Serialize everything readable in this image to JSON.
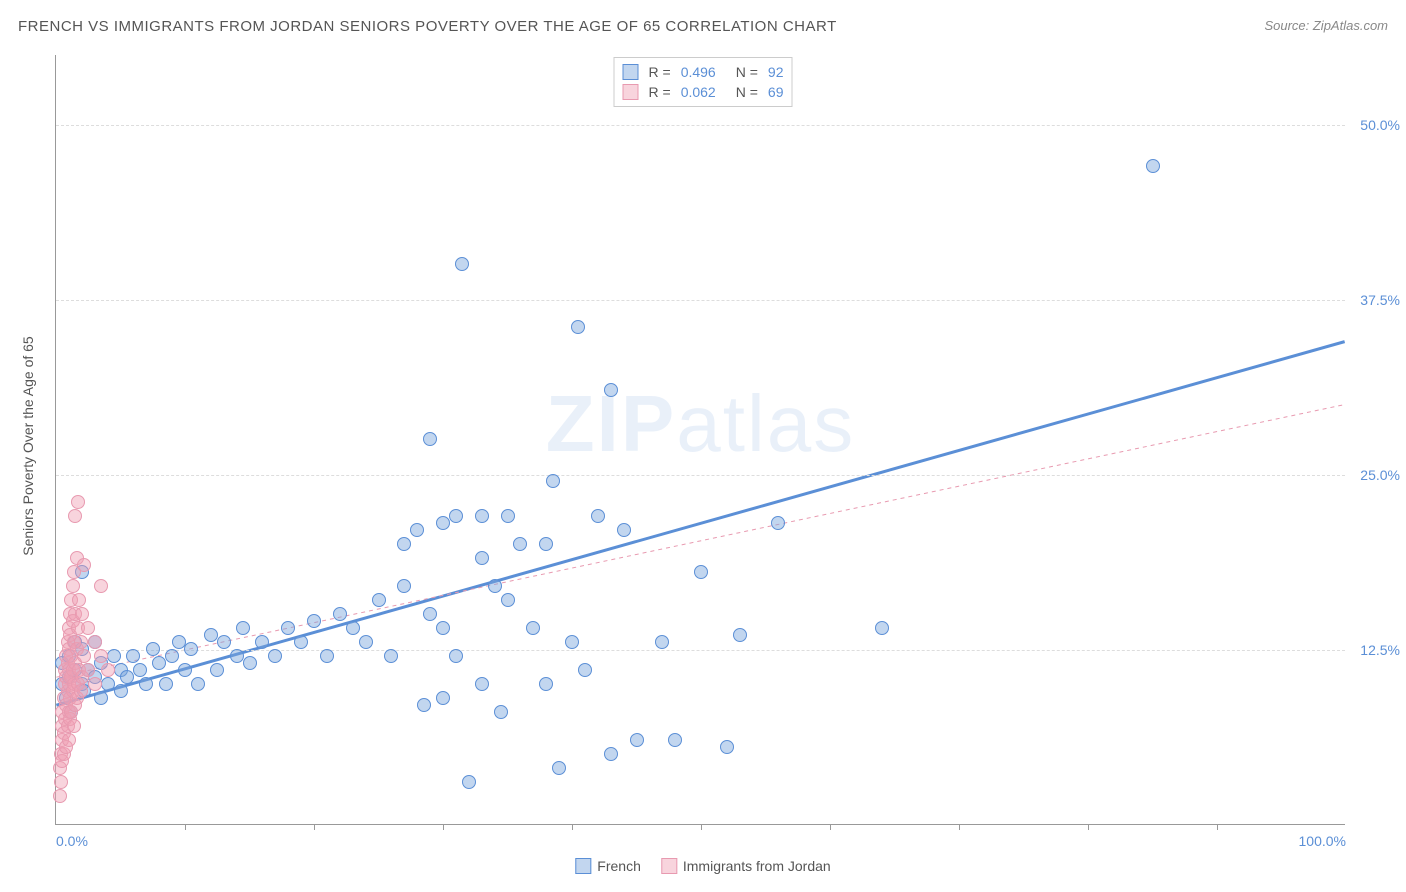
{
  "title": "FRENCH VS IMMIGRANTS FROM JORDAN SENIORS POVERTY OVER THE AGE OF 65 CORRELATION CHART",
  "source": "Source: ZipAtlas.com",
  "ylabel": "Seniors Poverty Over the Age of 65",
  "watermark_bold": "ZIP",
  "watermark_rest": "atlas",
  "chart": {
    "type": "scatter",
    "background_color": "#ffffff",
    "grid_color": "#dddddd",
    "axis_color": "#999999",
    "tick_label_color": "#5b8fd6",
    "label_color": "#555555",
    "title_fontsize": 15,
    "label_fontsize": 14,
    "tick_fontsize": 14,
    "xlim": [
      0,
      100
    ],
    "ylim": [
      0,
      55
    ],
    "yticks": [
      {
        "v": 12.5,
        "label": "12.5%"
      },
      {
        "v": 25.0,
        "label": "25.0%"
      },
      {
        "v": 37.5,
        "label": "37.5%"
      },
      {
        "v": 50.0,
        "label": "50.0%"
      }
    ],
    "xticks_major": [
      0,
      100
    ],
    "xtick_labels": {
      "0": "0.0%",
      "100": "100.0%"
    },
    "xticks_minor": [
      10,
      20,
      30,
      40,
      50,
      60,
      70,
      80,
      90
    ],
    "marker_radius": 7,
    "marker_opacity": 0.55,
    "series": [
      {
        "name": "French",
        "color": "#5b8fd6",
        "fill": "rgba(120,165,220,0.45)",
        "stroke": "#5b8fd6",
        "R": "0.496",
        "N": "92",
        "trend": {
          "x1": 0,
          "y1": 8.5,
          "x2": 100,
          "y2": 34.5,
          "width": 3,
          "dash": "none"
        },
        "points": [
          [
            0.5,
            10
          ],
          [
            0.5,
            11.5
          ],
          [
            0.8,
            9
          ],
          [
            1,
            10.5
          ],
          [
            1,
            12
          ],
          [
            1.2,
            8
          ],
          [
            1.5,
            11
          ],
          [
            1.5,
            13
          ],
          [
            2,
            10
          ],
          [
            2,
            12.5
          ],
          [
            2,
            18
          ],
          [
            2.2,
            9.5
          ],
          [
            2.5,
            11
          ],
          [
            3,
            10.5
          ],
          [
            3,
            13
          ],
          [
            3.5,
            9
          ],
          [
            3.5,
            11.5
          ],
          [
            4,
            10
          ],
          [
            4.5,
            12
          ],
          [
            5,
            9.5
          ],
          [
            5,
            11
          ],
          [
            5.5,
            10.5
          ],
          [
            6,
            12
          ],
          [
            6.5,
            11
          ],
          [
            7,
            10
          ],
          [
            7.5,
            12.5
          ],
          [
            8,
            11.5
          ],
          [
            8.5,
            10
          ],
          [
            9,
            12
          ],
          [
            9.5,
            13
          ],
          [
            10,
            11
          ],
          [
            10.5,
            12.5
          ],
          [
            11,
            10
          ],
          [
            12,
            13.5
          ],
          [
            12.5,
            11
          ],
          [
            13,
            13
          ],
          [
            14,
            12
          ],
          [
            14.5,
            14
          ],
          [
            15,
            11.5
          ],
          [
            16,
            13
          ],
          [
            17,
            12
          ],
          [
            18,
            14
          ],
          [
            19,
            13
          ],
          [
            20,
            14.5
          ],
          [
            21,
            12
          ],
          [
            22,
            15
          ],
          [
            23,
            14
          ],
          [
            24,
            13
          ],
          [
            25,
            16
          ],
          [
            26,
            12
          ],
          [
            27,
            17
          ],
          [
            27,
            20
          ],
          [
            28,
            21
          ],
          [
            28.5,
            8.5
          ],
          [
            29,
            15
          ],
          [
            29,
            27.5
          ],
          [
            30,
            9
          ],
          [
            30,
            14
          ],
          [
            30,
            21.5
          ],
          [
            31,
            12
          ],
          [
            31,
            22
          ],
          [
            31.5,
            40
          ],
          [
            32,
            3
          ],
          [
            33,
            10
          ],
          [
            33,
            19
          ],
          [
            33,
            22
          ],
          [
            34,
            17
          ],
          [
            34.5,
            8
          ],
          [
            35,
            16
          ],
          [
            35,
            22
          ],
          [
            36,
            20
          ],
          [
            37,
            14
          ],
          [
            38,
            10
          ],
          [
            38,
            20
          ],
          [
            38.5,
            24.5
          ],
          [
            39,
            4
          ],
          [
            40,
            13
          ],
          [
            40.5,
            35.5
          ],
          [
            41,
            11
          ],
          [
            42,
            22
          ],
          [
            43,
            5
          ],
          [
            43,
            31
          ],
          [
            44,
            21
          ],
          [
            45,
            6
          ],
          [
            47,
            13
          ],
          [
            48,
            6
          ],
          [
            50,
            18
          ],
          [
            52,
            5.5
          ],
          [
            53,
            13.5
          ],
          [
            56,
            21.5
          ],
          [
            64,
            14
          ],
          [
            85,
            47
          ]
        ]
      },
      {
        "name": "Immigrants from Jordan",
        "color": "#e89ab0",
        "fill": "rgba(240,160,180,0.45)",
        "stroke": "#e89ab0",
        "R": "0.062",
        "N": "69",
        "trend": {
          "x1": 0,
          "y1": 10.5,
          "x2": 100,
          "y2": 30,
          "width": 1,
          "dash": "4,4"
        },
        "points": [
          [
            0.3,
            2
          ],
          [
            0.3,
            4
          ],
          [
            0.4,
            3
          ],
          [
            0.4,
            5
          ],
          [
            0.5,
            4.5
          ],
          [
            0.5,
            6
          ],
          [
            0.5,
            7
          ],
          [
            0.5,
            8
          ],
          [
            0.6,
            5
          ],
          [
            0.6,
            6.5
          ],
          [
            0.6,
            9
          ],
          [
            0.7,
            7.5
          ],
          [
            0.7,
            10
          ],
          [
            0.7,
            11
          ],
          [
            0.8,
            5.5
          ],
          [
            0.8,
            8.5
          ],
          [
            0.8,
            10.5
          ],
          [
            0.8,
            12
          ],
          [
            0.9,
            7
          ],
          [
            0.9,
            9.5
          ],
          [
            0.9,
            11.5
          ],
          [
            0.9,
            13
          ],
          [
            1,
            6
          ],
          [
            1,
            8
          ],
          [
            1,
            10
          ],
          [
            1,
            11
          ],
          [
            1,
            12.5
          ],
          [
            1,
            14
          ],
          [
            1.1,
            7.5
          ],
          [
            1.1,
            9
          ],
          [
            1.1,
            13.5
          ],
          [
            1.1,
            15
          ],
          [
            1.2,
            8
          ],
          [
            1.2,
            10.5
          ],
          [
            1.2,
            12
          ],
          [
            1.2,
            16
          ],
          [
            1.3,
            9.5
          ],
          [
            1.3,
            11
          ],
          [
            1.3,
            14.5
          ],
          [
            1.3,
            17
          ],
          [
            1.4,
            7
          ],
          [
            1.4,
            10
          ],
          [
            1.4,
            13
          ],
          [
            1.4,
            18
          ],
          [
            1.5,
            8.5
          ],
          [
            1.5,
            11.5
          ],
          [
            1.5,
            15
          ],
          [
            1.5,
            22
          ],
          [
            1.6,
            9
          ],
          [
            1.6,
            12.5
          ],
          [
            1.6,
            19
          ],
          [
            1.7,
            10
          ],
          [
            1.7,
            14
          ],
          [
            1.7,
            23
          ],
          [
            1.8,
            11
          ],
          [
            1.8,
            16
          ],
          [
            1.9,
            9.5
          ],
          [
            1.9,
            13
          ],
          [
            2,
            10.5
          ],
          [
            2,
            15
          ],
          [
            2.2,
            12
          ],
          [
            2.2,
            18.5
          ],
          [
            2.5,
            11
          ],
          [
            2.5,
            14
          ],
          [
            3,
            10
          ],
          [
            3,
            13
          ],
          [
            3.5,
            12
          ],
          [
            3.5,
            17
          ],
          [
            4,
            11
          ]
        ]
      }
    ]
  },
  "stats_legend": {
    "R_label": "R =",
    "N_label": "N ="
  },
  "series_legend": {
    "items": [
      "French",
      "Immigrants from Jordan"
    ]
  }
}
